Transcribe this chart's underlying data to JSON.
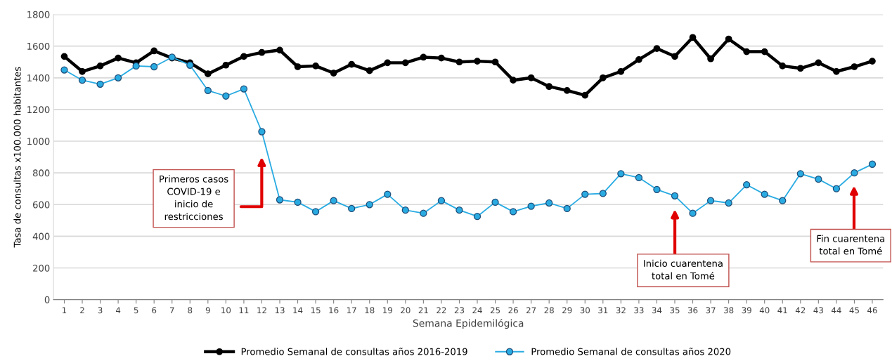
{
  "chart_data": {
    "type": "line",
    "xlabel": "Semana Epidemilógica",
    "ylabel": "Tasa de consultas x100.000 habitantes",
    "categories": [
      "1",
      "2",
      "3",
      "4",
      "5",
      "6",
      "7",
      "8",
      "9",
      "10",
      "11",
      "12",
      "13",
      "14",
      "15",
      "16",
      "17",
      "18",
      "19",
      "20",
      "21",
      "22",
      "23",
      "24",
      "25",
      "26",
      "27",
      "28",
      "29",
      "30",
      "31",
      "32",
      "33",
      "34",
      "35",
      "36",
      "37",
      "38",
      "39",
      "40",
      "41",
      "42",
      "43",
      "44",
      "45",
      "46"
    ],
    "series": [
      {
        "name": "Promedio Semanal de consultas años 2016-2019",
        "color": "#000000",
        "values": [
          1535,
          1440,
          1475,
          1525,
          1495,
          1570,
          1525,
          1495,
          1425,
          1480,
          1535,
          1560,
          1575,
          1470,
          1475,
          1430,
          1485,
          1445,
          1495,
          1495,
          1530,
          1525,
          1500,
          1505,
          1500,
          1385,
          1400,
          1345,
          1320,
          1290,
          1400,
          1440,
          1515,
          1585,
          1535,
          1655,
          1520,
          1645,
          1565,
          1565,
          1475,
          1460,
          1495,
          1440,
          1470,
          1505
        ]
      },
      {
        "name": "Promedio Semanal de consultas años 2020",
        "color": "#29abe2",
        "values": [
          1450,
          1385,
          1360,
          1400,
          1475,
          1470,
          1530,
          1480,
          1320,
          1285,
          1330,
          1060,
          630,
          615,
          555,
          625,
          575,
          600,
          665,
          565,
          545,
          625,
          565,
          525,
          615,
          555,
          590,
          610,
          575,
          665,
          670,
          795,
          770,
          695,
          655,
          545,
          625,
          610,
          725,
          665,
          625,
          795,
          760,
          700,
          800,
          855
        ]
      }
    ],
    "ylim": [
      0,
      1800
    ],
    "yticks": [
      0,
      200,
      400,
      600,
      800,
      1000,
      1200,
      1400,
      1600,
      1800
    ],
    "grid": "y",
    "legend": "bottom",
    "marker": "circle",
    "annotations": [
      "Primeros casos\nCOVID-19 e\ninicio de\nrestricciones",
      "Inicio cuarentena\ntotal en Tomé",
      "Fin cuarentena\ntotal en Tomé"
    ]
  }
}
